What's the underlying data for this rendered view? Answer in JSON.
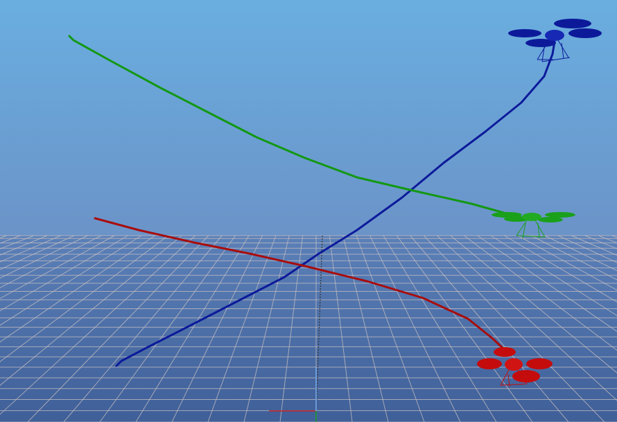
{
  "scene": {
    "sky_color_top": "#6aaee0",
    "sky_color_horizon": "#6b93c8",
    "ground_color_near": "#3f5f98",
    "ground_color_far": "#5b80b8",
    "grid_color": "#c8c0c0"
  },
  "drones": [
    {
      "color": "#0c1a9a",
      "trail_color": "#0c1a9a"
    },
    {
      "color": "#1aa01a",
      "trail_color": "#139813"
    },
    {
      "color": "#c40c0c",
      "trail_color": "#a80c0c"
    }
  ],
  "axes": {
    "x_color": "#c81e1e",
    "y_color": "#1ea01e",
    "z_color": "#7ab0f0"
  }
}
